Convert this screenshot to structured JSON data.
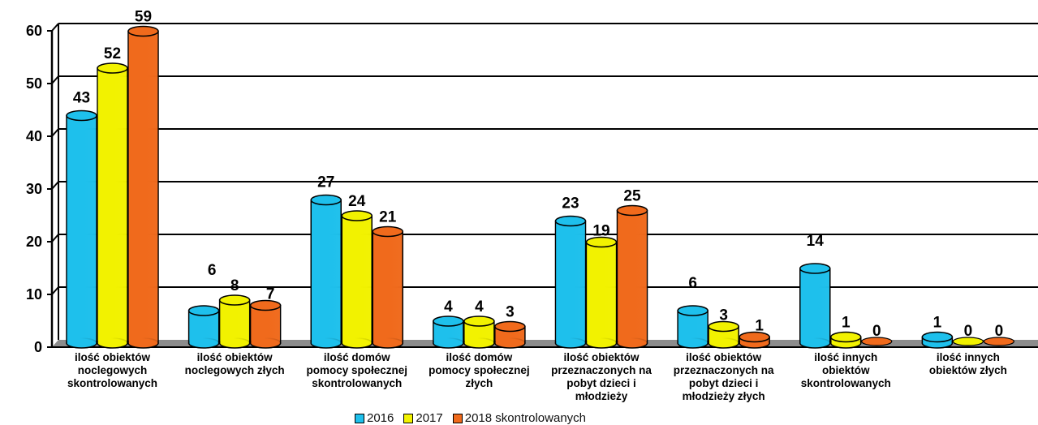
{
  "colors": {
    "s2016": "#1EC0EC",
    "s2017": "#F2F200",
    "s2018": "#F06A1C",
    "floor": "#8c8c8c"
  },
  "chart_data": {
    "type": "bar",
    "title": "",
    "xlabel": "",
    "ylabel": "",
    "ylim": [
      0,
      60
    ],
    "yticks": [
      0,
      10,
      20,
      30,
      40,
      50,
      60
    ],
    "grid": true,
    "legend_position": "bottom",
    "categories": [
      [
        "ilość obiektów",
        "noclegowych",
        "skontrolowanych"
      ],
      [
        "ilość obiektów",
        "noclegowych złych"
      ],
      [
        "ilość domów",
        "pomocy społecznej",
        "skontrolowanych"
      ],
      [
        "ilość domów",
        "pomocy społecznej",
        "złych"
      ],
      [
        "ilość obiektów",
        "przeznaczonych na",
        "pobyt dzieci i",
        "młodzieży"
      ],
      [
        "ilość obiektów",
        "przeznaczonych na",
        "pobyt dzieci i",
        "młodzieży złych"
      ],
      [
        "ilość innych",
        "obiektów",
        "skontrolowanych"
      ],
      [
        "ilość innych",
        "obiektów złych"
      ]
    ],
    "series": [
      {
        "name": "2016",
        "values": [
          43,
          6,
          27,
          4,
          23,
          6,
          14,
          1
        ]
      },
      {
        "name": "2017",
        "values": [
          52,
          8,
          24,
          4,
          19,
          3,
          1,
          0
        ]
      },
      {
        "name": "2018 skontrolowanych",
        "values": [
          59,
          7,
          21,
          3,
          25,
          1,
          0,
          0
        ]
      }
    ]
  }
}
